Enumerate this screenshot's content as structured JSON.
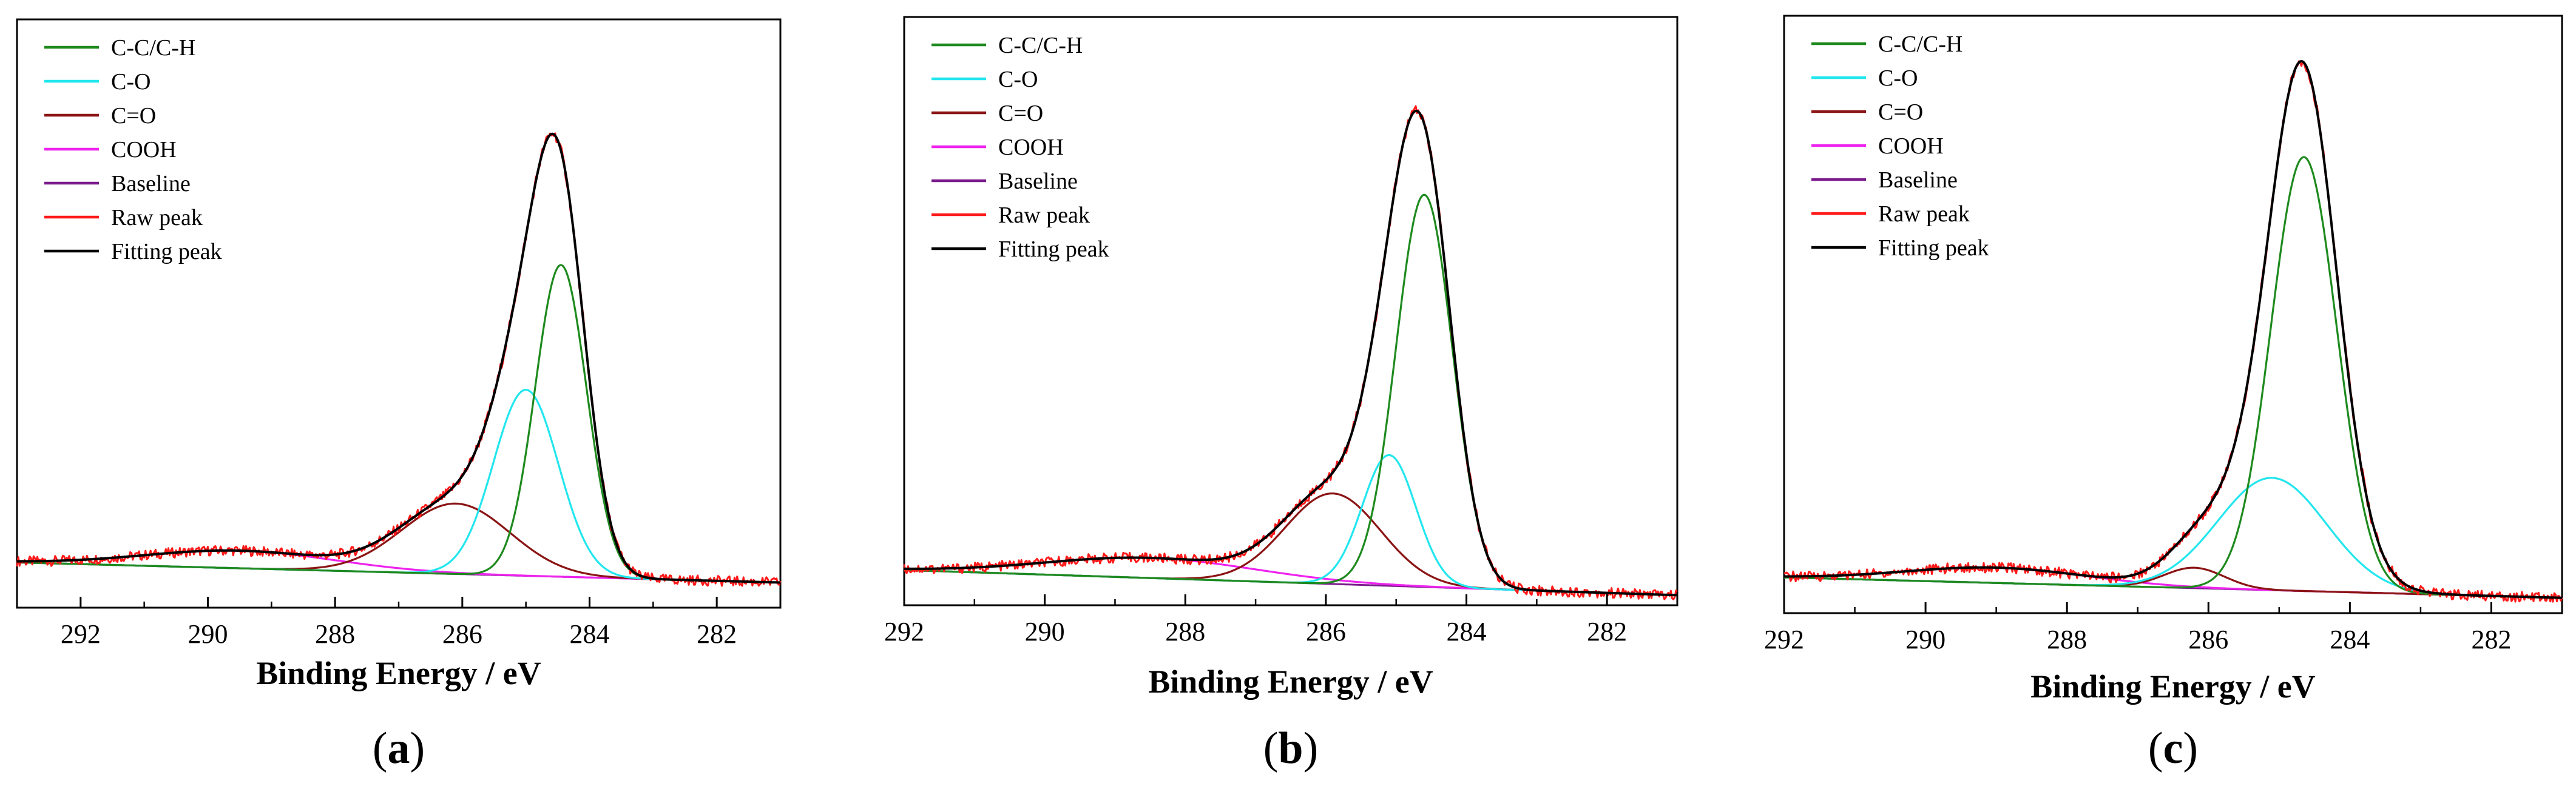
{
  "figure": {
    "panels": [
      {
        "id": "a",
        "label_open": "(",
        "label_letter": "a",
        "label_close": ")"
      },
      {
        "id": "b",
        "label_open": "(",
        "label_letter": "b",
        "label_close": ")"
      },
      {
        "id": "c",
        "label_open": "(",
        "label_letter": "c",
        "label_close": ")"
      }
    ]
  },
  "colors": {
    "C-C/C-H": "#1e8a1e",
    "C-O": "#22e6ee",
    "C=O": "#8b1414",
    "COOH": "#ee22ee",
    "Baseline": "#7a1a8c",
    "Raw peak": "#ff1a1a",
    "Fitting peak": "#000000"
  },
  "chart_data": [
    {
      "type": "line",
      "panel": "a",
      "title": "",
      "xlabel": "Binding Energy / eV",
      "ylabel": "",
      "xlim": [
        293,
        281
      ],
      "x_reversed": true,
      "ylim": [
        -0.05,
        1.12
      ],
      "xticks": [
        292,
        290,
        288,
        286,
        284,
        282
      ],
      "xtick_labels": [
        "292",
        "290",
        "288",
        "286",
        "284",
        "282"
      ],
      "legend": [
        "C-C/C-H",
        "C-O",
        "C=O",
        "COOH",
        "Baseline",
        "Raw peak",
        "Fitting peak"
      ],
      "legend_position": "top-left",
      "baseline": {
        "x": [
          293,
          281
        ],
        "y": [
          0.04,
          0.0
        ]
      },
      "components": [
        {
          "name": "C-C/C-H",
          "center": 284.45,
          "amplitude": 0.62,
          "fwhm": 0.95
        },
        {
          "name": "C-O",
          "center": 285.0,
          "amplitude": 0.37,
          "fwhm": 1.2
        },
        {
          "name": "C=O",
          "center": 286.1,
          "amplitude": 0.14,
          "fwhm": 2.0
        },
        {
          "name": "COOH",
          "center": 289.5,
          "amplitude": 0.035,
          "fwhm": 3.5
        }
      ]
    },
    {
      "type": "line",
      "panel": "b",
      "title": "",
      "xlabel": "Binding Energy / eV",
      "ylabel": "",
      "xlim": [
        292,
        281
      ],
      "x_reversed": true,
      "ylim": [
        -0.05,
        1.12
      ],
      "xticks": [
        292,
        290,
        288,
        286,
        284,
        282
      ],
      "xtick_labels": [
        "292",
        "290",
        "288",
        "286",
        "284",
        "282"
      ],
      "legend": [
        "C-C/C-H",
        "C-O",
        "C=O",
        "COOH",
        "Baseline",
        "Raw peak",
        "Fitting peak"
      ],
      "legend_position": "top-left",
      "baseline": {
        "x": [
          292,
          281
        ],
        "y": [
          0.02,
          -0.03
        ]
      },
      "components": [
        {
          "name": "C-C/C-H",
          "center": 284.6,
          "amplitude": 0.78,
          "fwhm": 0.95
        },
        {
          "name": "C-O",
          "center": 285.1,
          "amplitude": 0.26,
          "fwhm": 0.9
        },
        {
          "name": "C=O",
          "center": 285.9,
          "amplitude": 0.18,
          "fwhm": 1.6
        },
        {
          "name": "COOH",
          "center": 288.5,
          "amplitude": 0.04,
          "fwhm": 3.5
        }
      ]
    },
    {
      "type": "line",
      "panel": "c",
      "title": "",
      "xlabel": "Binding Energy / eV",
      "ylabel": "",
      "xlim": [
        292,
        281
      ],
      "x_reversed": true,
      "ylim": [
        -0.05,
        1.12
      ],
      "xticks": [
        292,
        290,
        288,
        286,
        284,
        282
      ],
      "xtick_labels": [
        "292",
        "290",
        "288",
        "286",
        "284",
        "282"
      ],
      "legend": [
        "C-C/C-H",
        "C-O",
        "C=O",
        "COOH",
        "Baseline",
        "Raw peak",
        "Fitting peak"
      ],
      "legend_position": "top-left",
      "baseline": {
        "x": [
          292,
          281
        ],
        "y": [
          0.02,
          -0.02
        ]
      },
      "components": [
        {
          "name": "C-C/C-H",
          "center": 284.65,
          "amplitude": 0.85,
          "fwhm": 1.1
        },
        {
          "name": "C-O",
          "center": 285.1,
          "amplitude": 0.22,
          "fwhm": 1.8
        },
        {
          "name": "C=O",
          "center": 286.2,
          "amplitude": 0.04,
          "fwhm": 1.0
        },
        {
          "name": "COOH",
          "center": 289.0,
          "amplitude": 0.03,
          "fwhm": 3.0
        }
      ]
    }
  ]
}
